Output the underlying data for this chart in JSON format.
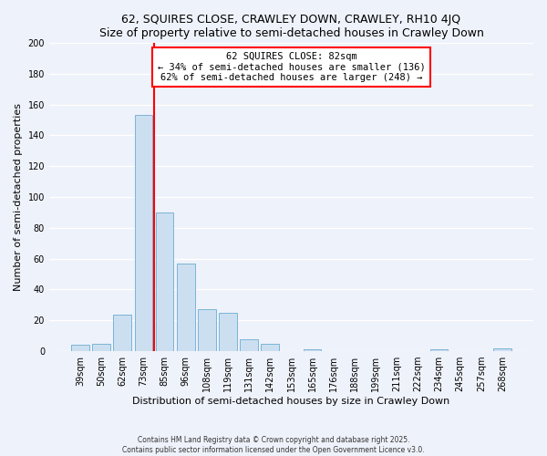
{
  "title": "62, SQUIRES CLOSE, CRAWLEY DOWN, CRAWLEY, RH10 4JQ",
  "subtitle": "Size of property relative to semi-detached houses in Crawley Down",
  "xlabel": "Distribution of semi-detached houses by size in Crawley Down",
  "ylabel": "Number of semi-detached properties",
  "bin_labels": [
    "39sqm",
    "50sqm",
    "62sqm",
    "73sqm",
    "85sqm",
    "96sqm",
    "108sqm",
    "119sqm",
    "131sqm",
    "142sqm",
    "153sqm",
    "165sqm",
    "176sqm",
    "188sqm",
    "199sqm",
    "211sqm",
    "222sqm",
    "234sqm",
    "245sqm",
    "257sqm",
    "268sqm"
  ],
  "bar_heights": [
    4,
    5,
    24,
    153,
    90,
    57,
    27,
    25,
    8,
    5,
    0,
    1,
    0,
    0,
    0,
    0,
    0,
    1,
    0,
    0,
    2
  ],
  "bar_color": "#ccdff0",
  "bar_edge_color": "#7ab4d8",
  "vline_color": "red",
  "annotation_text": "62 SQUIRES CLOSE: 82sqm\n← 34% of semi-detached houses are smaller (136)\n62% of semi-detached houses are larger (248) →",
  "annotation_box_color": "white",
  "annotation_box_edge": "red",
  "ylim": [
    0,
    200
  ],
  "yticks": [
    0,
    20,
    40,
    60,
    80,
    100,
    120,
    140,
    160,
    180,
    200
  ],
  "footer": "Contains HM Land Registry data © Crown copyright and database right 2025.\nContains public sector information licensed under the Open Government Licence v3.0.",
  "bg_color": "#eef2fa",
  "grid_color": "white"
}
